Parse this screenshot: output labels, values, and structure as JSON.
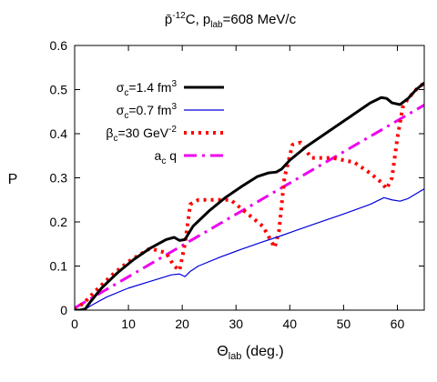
{
  "chart_data": {
    "type": "line",
    "title": {
      "p": "p",
      "bar": "̄",
      "sup": "-12",
      "c": "C, p",
      "sub": "lab",
      "rest": "=608 MeV/c"
    },
    "xlabel": {
      "main": "Θ",
      "sub": "lab",
      "rest": " (deg.)"
    },
    "ylabel": "P",
    "xlim": [
      0,
      65
    ],
    "ylim": [
      0,
      0.6
    ],
    "xticks": [
      "0",
      "10",
      "20",
      "30",
      "40",
      "50",
      "60"
    ],
    "yticks": [
      "0",
      "0.1",
      "0.2",
      "0.3",
      "0.4",
      "0.5",
      "0.6"
    ],
    "legend_position": "top-left",
    "series": [
      {
        "name": "σc=1.4 fm3",
        "label": {
          "sym": "σ",
          "sub": "c",
          "mid": "=1.4 fm",
          "sup": "3"
        },
        "color": "#000000",
        "style": "solid-thick",
        "x": [
          0,
          1,
          2,
          3,
          5,
          8,
          11,
          14,
          17,
          18.5,
          19.5,
          20.5,
          22,
          25,
          28,
          31,
          34,
          36,
          37.5,
          38.5,
          40,
          43,
          46,
          49,
          52,
          55,
          57,
          58,
          59,
          60.5,
          62,
          63.5,
          65
        ],
        "y": [
          0,
          0,
          0.003,
          0.02,
          0.05,
          0.085,
          0.115,
          0.14,
          0.16,
          0.165,
          0.158,
          0.16,
          0.19,
          0.225,
          0.255,
          0.28,
          0.303,
          0.311,
          0.313,
          0.32,
          0.34,
          0.37,
          0.395,
          0.42,
          0.445,
          0.47,
          0.482,
          0.48,
          0.47,
          0.466,
          0.48,
          0.5,
          0.515
        ]
      },
      {
        "name": "σc=0.7 fm3",
        "label": {
          "sym": "σ",
          "sub": "c",
          "mid": "=0.7 fm",
          "sup": "3"
        },
        "color": "#0000dd",
        "style": "solid-thin",
        "x": [
          0,
          1,
          2,
          3,
          6,
          10,
          14,
          18,
          19.5,
          20.5,
          21.5,
          23,
          27,
          31,
          35,
          38,
          41,
          45,
          50,
          55,
          57.5,
          59,
          60.5,
          62,
          65
        ],
        "y": [
          0,
          0,
          0.002,
          0.01,
          0.03,
          0.05,
          0.065,
          0.08,
          0.082,
          0.076,
          0.088,
          0.1,
          0.12,
          0.138,
          0.155,
          0.167,
          0.18,
          0.197,
          0.218,
          0.24,
          0.255,
          0.25,
          0.247,
          0.253,
          0.275
        ]
      },
      {
        "name": "βc=30 GeV-2",
        "label": {
          "sym": "β",
          "sub": "c",
          "mid": "=30 GeV",
          "sup": "-2"
        },
        "color": "#ff0000",
        "style": "dotted-thick",
        "x": [
          0,
          2,
          4,
          7,
          10,
          14,
          17,
          18.5,
          19.5,
          20.5,
          21.5,
          23,
          26,
          29,
          32,
          35,
          37.2,
          38,
          39,
          40.5,
          42,
          44,
          48,
          52,
          55,
          57,
          58,
          59,
          60,
          61,
          62,
          63.5,
          65
        ],
        "y": [
          0,
          0.02,
          0.045,
          0.08,
          0.11,
          0.14,
          0.13,
          0.1,
          0.09,
          0.15,
          0.24,
          0.25,
          0.25,
          0.25,
          0.22,
          0.19,
          0.142,
          0.18,
          0.3,
          0.375,
          0.38,
          0.345,
          0.345,
          0.335,
          0.31,
          0.29,
          0.275,
          0.3,
          0.39,
          0.46,
          0.48,
          0.5,
          0.515
        ]
      },
      {
        "name": "ac q",
        "label": {
          "sym": "a",
          "sub": "c",
          "mid": " q",
          "sup": ""
        },
        "color": "#ee00ee",
        "style": "dashdot-thick",
        "x": [
          0,
          65
        ],
        "y": [
          0.005,
          0.465
        ]
      }
    ]
  }
}
